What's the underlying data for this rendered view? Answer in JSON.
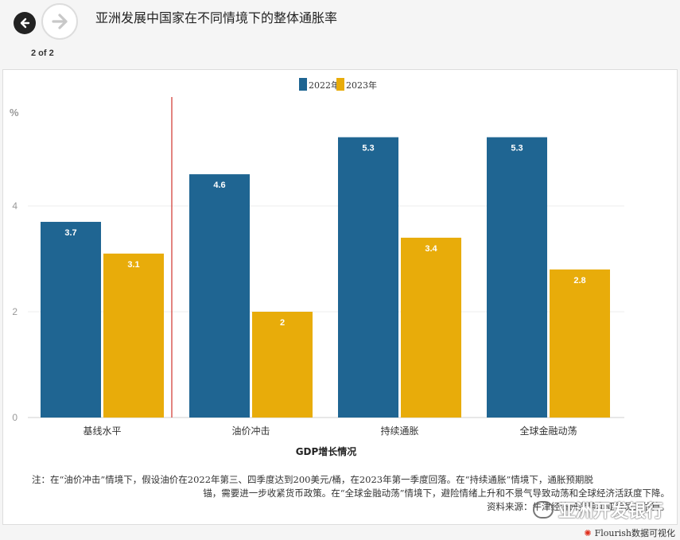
{
  "header": {
    "title": "亚洲发展中国家在不同情境下的整体通胀率",
    "page_counter": "2 of 2"
  },
  "colors": {
    "series_2022": "#1f6592",
    "series_2023": "#e8ac0a",
    "divider": "#d0342c"
  },
  "chart_data": {
    "type": "bar",
    "ylabel": "%",
    "xlabel": "GDP增长情况",
    "categories": [
      "基线水平",
      "油价冲击",
      "持续通胀",
      "全球金融动荡"
    ],
    "series": [
      {
        "name": "2022年",
        "values": [
          3.7,
          4.6,
          5.3,
          5.3
        ],
        "labels": [
          "3.7",
          "4.6",
          "5.3",
          "5.3"
        ]
      },
      {
        "name": "2023年",
        "values": [
          3.1,
          2,
          3.4,
          2.8
        ],
        "labels": [
          "3.1",
          "2",
          "3.4",
          "2.8"
        ]
      }
    ],
    "yticks": [
      0,
      2,
      4
    ],
    "ytick_labels": [
      "0",
      "2",
      "4"
    ],
    "ylim": [
      0,
      5.6
    ],
    "legend_position": "top-center",
    "grid": true
  },
  "footnote": {
    "line1": "注：在“油价冲击”情境下，假设油价在2022年第三、四季度达到200美元/桶，在2023年第一季度回落。在“持续通胀”情境下，通胀预期脱",
    "line2": "锚，需要进一步收紧货币政策。在“全球金融动荡”情境下，避险情绪上升和不景气导致动荡和全球经济活跃度下降。",
    "line3": "资料来源：牛津经济研究院和亚行员工估算。"
  },
  "watermark": "亚洲开发银行",
  "credit": "Flourish数据可视化",
  "icons": {
    "back": "arrow-left-icon",
    "forward": "arrow-right-icon",
    "flourish": "flourish-logo-icon"
  }
}
